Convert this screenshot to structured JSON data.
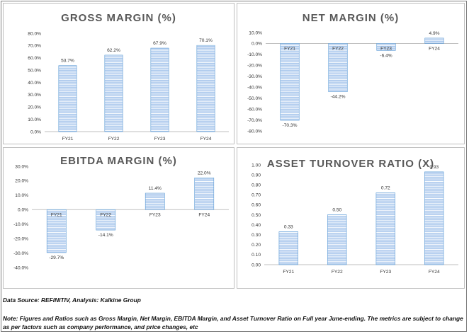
{
  "footer": {
    "source": "Data Source: REFINITIV, Analysis: Kalkine Group",
    "note": "Note: Figures and Ratios such as Gross Margin, Net Margin, EBITDA Margin, and Asset Turnover Ratio on Full  year June-ending. The metrics are subject to change as per factors such as company performance, and price changes, etc"
  },
  "colors": {
    "bar_fill": "#a8c6ec",
    "bar_stripe": "#ffffff",
    "bar_edge": "#5b9bd5",
    "axis": "#bfbfbf"
  },
  "chart_data": [
    {
      "id": "gross",
      "type": "bar",
      "title": "GROSS MARGIN (%)",
      "categories": [
        "FY21",
        "FY22",
        "FY23",
        "FY24"
      ],
      "values": [
        53.7,
        62.2,
        67.9,
        70.1
      ],
      "labels": [
        "53.7%",
        "62.2%",
        "67.9%",
        "70.1%"
      ],
      "yticks": [
        "80.0%",
        "70.0%",
        "60.0%",
        "50.0%",
        "40.0%",
        "30.0%",
        "20.0%",
        "10.0%",
        "0.0%"
      ],
      "ylim": [
        0,
        80
      ],
      "grid": false
    },
    {
      "id": "net",
      "type": "bar",
      "title": "NET MARGIN (%)",
      "categories": [
        "FY21",
        "FY22",
        "FY23",
        "FY24"
      ],
      "values": [
        -70.3,
        -44.2,
        -6.4,
        4.9
      ],
      "labels": [
        "-70.3%",
        "-44.2%",
        "-6.4%",
        "4.9%"
      ],
      "yticks": [
        "10.0%",
        "0.0%",
        "-10.0%",
        "-20.0%",
        "-30.0%",
        "-40.0%",
        "-50.0%",
        "-60.0%",
        "-70.0%",
        "-80.0%"
      ],
      "ylim": [
        -80,
        10
      ],
      "grid": false
    },
    {
      "id": "ebitda",
      "type": "bar",
      "title": "EBITDA MARGIN (%)",
      "categories": [
        "FY21",
        "FY22",
        "FY23",
        "FY24"
      ],
      "values": [
        -29.7,
        -14.1,
        11.4,
        22.0
      ],
      "labels": [
        "-29.7%",
        "-14.1%",
        "11.4%",
        "22.0%"
      ],
      "yticks": [
        "30.0%",
        "20.0%",
        "10.0%",
        "0.0%",
        "-10.0%",
        "-20.0%",
        "-30.0%",
        "-40.0%"
      ],
      "ylim": [
        -40,
        30
      ],
      "grid": false
    },
    {
      "id": "asset",
      "type": "bar",
      "title": "ASSET TURNOVER RATIO (X)",
      "categories": [
        "FY21",
        "FY22",
        "FY23",
        "FY24"
      ],
      "values": [
        0.33,
        0.5,
        0.72,
        0.93
      ],
      "labels": [
        "0.33",
        "0.50",
        "0.72",
        "0.93"
      ],
      "yticks": [
        "1.00",
        "0.90",
        "0.80",
        "0.70",
        "0.60",
        "0.50",
        "0.40",
        "0.30",
        "0.20",
        "0.10",
        "0.00"
      ],
      "ylim": [
        0,
        1.0
      ],
      "grid": false
    }
  ]
}
